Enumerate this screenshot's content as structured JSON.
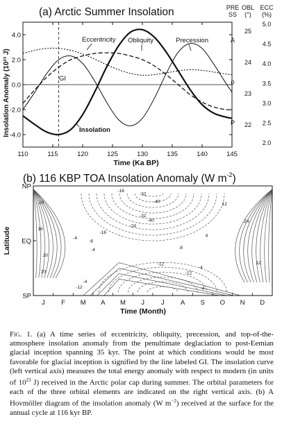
{
  "panel_a": {
    "title": "(a) Arctic Summer Insolation",
    "ylabel": "Insolation Anomaly (10²³ J)",
    "xlabel": "Time (Ka BP)",
    "right_axis_headers": {
      "pre": "PRE",
      "ss": "SS",
      "obl": "OBL",
      "obl_unit": "(°)",
      "ecc": "ECC",
      "ecc_unit": "(%)"
    },
    "pre_ticks": [
      "A",
      "0",
      "P"
    ],
    "obl_ticks": [
      "25",
      "24",
      "23",
      "22"
    ],
    "ecc_ticks": [
      "5.0",
      "4.5",
      "4.0",
      "3.5",
      "3.0",
      "2.5",
      "2.0"
    ],
    "curve_labels": {
      "eccentricity": "Eccentricity",
      "obliquity": "Obliquity",
      "precession": "Precession",
      "insolation": "Insolation",
      "gi": "GI"
    },
    "gi_line_x": 116
  },
  "panel_b": {
    "title": "(b) 116 KBP TOA Insolation Anomaly (W m",
    "title_sup": "-2",
    "title_end": ")",
    "ylabel": "Latitude",
    "xlabel": "Time (Month)",
    "lat_ticks": [
      "NP",
      "EQ",
      "SP"
    ],
    "month_ticks": [
      "J",
      "F",
      "M",
      "A",
      "M",
      "J",
      "J",
      "A",
      "S",
      "O",
      "N",
      "D"
    ],
    "contour_labels": [
      {
        "text": "-16",
        "m": 4.4,
        "lat": 0.96
      },
      {
        "text": "-32",
        "m": 5.5,
        "lat": 0.93
      },
      {
        "text": "-40",
        "m": 6.2,
        "lat": 0.86
      },
      {
        "text": "-32",
        "m": 5.5,
        "lat": 0.73
      },
      {
        "text": "-40",
        "m": 5.9,
        "lat": 0.69
      },
      {
        "text": "-24",
        "m": 5.0,
        "lat": 0.64
      },
      {
        "text": "-16",
        "m": 3.5,
        "lat": 0.58
      },
      {
        "text": "-8",
        "m": 2.9,
        "lat": 0.5
      },
      {
        "text": "-4",
        "m": 2.1,
        "lat": 0.53
      },
      {
        "text": "-4",
        "m": 3.0,
        "lat": 0.42
      },
      {
        "text": "12",
        "m": 9.6,
        "lat": 0.84
      },
      {
        "text": "24",
        "m": 10.7,
        "lat": 0.68
      },
      {
        "text": "20",
        "m": 0.4,
        "lat": 0.85
      },
      {
        "text": "16",
        "m": 0.35,
        "lat": 0.61
      },
      {
        "text": "20",
        "m": 0.6,
        "lat": 0.37
      },
      {
        "text": "-8",
        "m": 7.4,
        "lat": 0.44
      },
      {
        "text": "-12",
        "m": 6.4,
        "lat": 0.29
      },
      {
        "text": "-12",
        "m": 7.8,
        "lat": 0.21
      },
      {
        "text": "-4",
        "m": 8.4,
        "lat": 0.26
      },
      {
        "text": "-12",
        "m": 2.3,
        "lat": 0.08
      },
      {
        "text": "-4",
        "m": 2.6,
        "lat": 0.13
      },
      {
        "text": "-4",
        "m": 8.5,
        "lat": 0.07
      },
      {
        "text": "12",
        "m": 11.3,
        "lat": 0.3
      },
      {
        "text": "20",
        "m": 0.5,
        "lat": 0.22
      },
      {
        "text": "4",
        "m": 8.7,
        "lat": 0.55
      }
    ]
  },
  "caption": {
    "label": "Fig. 1.",
    "text": " (a) A time series of eccentricity, obliquity, precession, and top-of-the-atmosphere insolation anomaly from the penultimate deglaciation to post-Eemian glacial inception spanning 35 kyr. The point at which conditions would be most favorable for glacial inception is signified by the line labeled GI. The insolation curve (left vertical axis) measures the total energy anomaly with respect to modern (in units of 10",
    "sup": "23",
    "text2": " J) received in the Arctic polar cap during summer. The orbital parameters for each of the three orbital elements are indicated on the right vertical axis. (b) A Hovmöller diagram of the insolation anomaly (W m",
    "sup2": "−2",
    "text3": ") received at the surface for the annual cycle at 116 kyr BP."
  },
  "chart_data": [
    {
      "type": "line",
      "title": "(a) Arctic Summer Insolation",
      "xlabel": "Time (Ka BP)",
      "ylabel": "Insolation Anomaly (10²³ J)",
      "xlim": [
        110,
        145
      ],
      "ylim": [
        -5.0,
        5.0
      ],
      "x_ticks": [
        110,
        115,
        120,
        125,
        130,
        135,
        140,
        145
      ],
      "y_ticks": [
        -4.0,
        -2.0,
        0.0,
        2.0,
        4.0
      ],
      "x": [
        110,
        112,
        114,
        116,
        118,
        120,
        122,
        124,
        126,
        128,
        130,
        132,
        134,
        136,
        138,
        140,
        142,
        144,
        145
      ],
      "series": [
        {
          "name": "Insolation",
          "values": [
            -2.5,
            -3.2,
            -3.8,
            -4.0,
            -3.6,
            -2.4,
            -0.6,
            1.4,
            3.1,
            4.2,
            4.4,
            3.8,
            2.6,
            1.1,
            -0.4,
            -1.6,
            -2.3,
            -2.6,
            -2.7
          ]
        },
        {
          "name": "Eccentricity",
          "values": [
            2.5,
            2.75,
            2.9,
            2.9,
            2.75,
            2.45,
            2.05,
            1.6,
            1.2,
            0.9,
            0.75,
            0.8,
            0.95,
            1.1,
            1.2,
            1.15,
            1.0,
            0.85,
            0.8
          ]
        },
        {
          "name": "Obliquity",
          "values": [
            -1.5,
            -0.4,
            0.6,
            1.4,
            2.0,
            2.3,
            2.5,
            2.55,
            2.5,
            2.3,
            2.0,
            1.5,
            0.8,
            0.0,
            -0.8,
            -1.4,
            -1.8,
            -2.0,
            -2.0
          ]
        },
        {
          "name": "Precession",
          "values": [
            -2.0,
            -0.6,
            0.9,
            2.0,
            2.3,
            1.7,
            0.3,
            -1.4,
            -2.8,
            -3.3,
            -2.7,
            -1.1,
            0.9,
            2.6,
            3.3,
            2.9,
            1.6,
            0.1,
            -0.6
          ]
        }
      ]
    },
    {
      "type": "heatmap",
      "title": "(b) 116 KBP TOA Insolation Anomaly (W m-2)",
      "xlabel": "Time (Month)",
      "ylabel": "Latitude",
      "x_categories": [
        "J",
        "F",
        "M",
        "A",
        "M",
        "J",
        "J",
        "A",
        "S",
        "O",
        "N",
        "D"
      ],
      "y_categories": [
        "NP",
        "EQ",
        "SP"
      ]
    }
  ]
}
